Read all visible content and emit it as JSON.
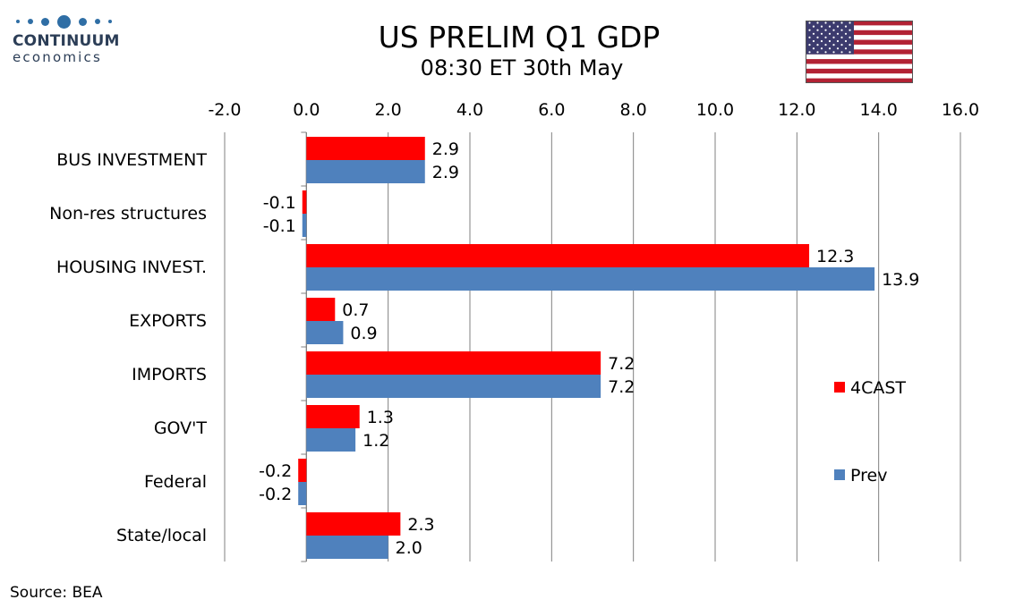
{
  "header": {
    "logo_line1": "CONTINUUM",
    "logo_line2": "economics",
    "title": "US PRELIM Q1 GDP",
    "subtitle": "08:30 ET 30th May"
  },
  "footer": {
    "source": "Source: BEA"
  },
  "flag": {
    "icon": "us-flag-icon"
  },
  "colors": {
    "4CAST": "#ff0000",
    "Prev": "#4f81bd",
    "grid": "#808080",
    "logo": "#2f6ea5"
  },
  "chart_data": {
    "type": "bar",
    "orientation": "horizontal",
    "categories": [
      "BUS INVESTMENT",
      "Non-res structures",
      "HOUSING INVEST.",
      "EXPORTS",
      "IMPORTS",
      "GOV'T",
      "Federal",
      "State/local"
    ],
    "series": [
      {
        "name": "4CAST",
        "values": [
          2.9,
          -0.1,
          12.3,
          0.7,
          7.2,
          1.3,
          -0.2,
          2.3
        ],
        "labels": [
          "2.9",
          "-0.1",
          "12.3",
          "0.7",
          "7.2",
          "1.3",
          "-0.2",
          "2.3"
        ]
      },
      {
        "name": "Prev",
        "values": [
          2.9,
          -0.1,
          13.9,
          0.9,
          7.2,
          1.2,
          -0.2,
          2.0
        ],
        "labels": [
          "2.9",
          "-0.1",
          "13.9",
          "0.9",
          "7.2",
          "1.2",
          "-0.2",
          "2.0"
        ]
      }
    ],
    "xlim": [
      -2.0,
      16.0
    ],
    "xticks": [
      -2.0,
      0.0,
      2.0,
      4.0,
      6.0,
      8.0,
      10.0,
      12.0,
      14.0,
      16.0
    ],
    "xtick_labels": [
      "-2.0",
      "0.0",
      "2.0",
      "4.0",
      "6.0",
      "8.0",
      "10.0",
      "12.0",
      "14.0",
      "16.0"
    ],
    "x_axis_position": "top",
    "grid": "vertical",
    "legend": "right"
  }
}
